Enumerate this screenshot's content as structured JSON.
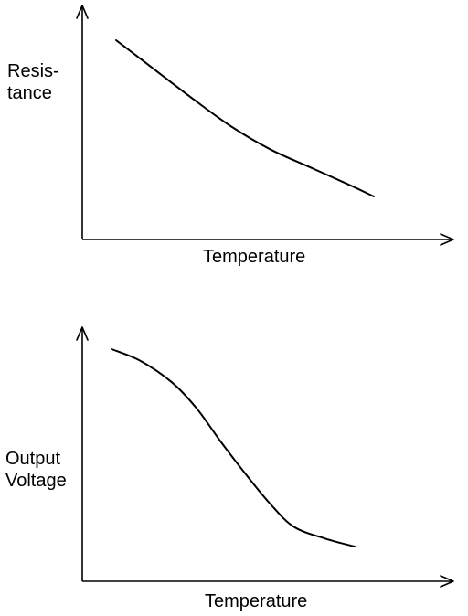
{
  "chart_data": [
    {
      "type": "line",
      "title": "",
      "xlabel": "Temperature",
      "ylabel_lines": [
        "Resis-",
        "tance"
      ],
      "qualitative": true,
      "x": [
        0,
        0.15,
        0.3,
        0.45,
        0.6,
        0.75,
        0.9,
        1.0
      ],
      "y": [
        1.0,
        0.83,
        0.66,
        0.5,
        0.37,
        0.27,
        0.17,
        0.1
      ],
      "xlim": [
        0,
        1
      ],
      "ylim": [
        0,
        1
      ],
      "grid": false,
      "legend": "none"
    },
    {
      "type": "line",
      "title": "",
      "xlabel": "Temperature",
      "ylabel_lines": [
        "Output",
        "Voltage"
      ],
      "qualitative": true,
      "x": [
        0,
        0.12,
        0.25,
        0.35,
        0.45,
        0.55,
        0.65,
        0.75,
        0.88,
        1.0
      ],
      "y": [
        1.0,
        0.94,
        0.83,
        0.7,
        0.53,
        0.37,
        0.22,
        0.1,
        0.04,
        0.0
      ],
      "xlim": [
        0,
        1
      ],
      "ylim": [
        0,
        1
      ],
      "grid": false,
      "legend": "none"
    }
  ]
}
